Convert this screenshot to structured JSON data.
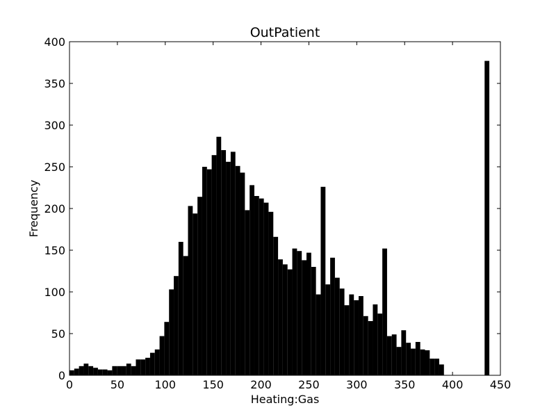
{
  "chart_data": {
    "type": "bar",
    "title": "OutPatient",
    "xlabel": "Heating:Gas",
    "ylabel": "Frequency",
    "xlim": [
      0,
      450
    ],
    "ylim": [
      0,
      400
    ],
    "xticks": [
      0,
      50,
      100,
      150,
      200,
      250,
      300,
      350,
      400,
      450
    ],
    "yticks": [
      0,
      50,
      100,
      150,
      200,
      250,
      300,
      350,
      400
    ],
    "grid": false,
    "legend": "none",
    "bar_color": "#000000",
    "bin_width": 4.95,
    "bins": [
      {
        "x": 0.0,
        "y": 6
      },
      {
        "x": 4.95,
        "y": 8
      },
      {
        "x": 9.9,
        "y": 11
      },
      {
        "x": 14.85,
        "y": 14
      },
      {
        "x": 19.8,
        "y": 11
      },
      {
        "x": 24.75,
        "y": 9
      },
      {
        "x": 29.7,
        "y": 7
      },
      {
        "x": 34.65,
        "y": 7
      },
      {
        "x": 39.6,
        "y": 6
      },
      {
        "x": 44.55,
        "y": 11
      },
      {
        "x": 49.5,
        "y": 11
      },
      {
        "x": 54.45,
        "y": 11
      },
      {
        "x": 59.4,
        "y": 14
      },
      {
        "x": 64.35,
        "y": 11
      },
      {
        "x": 69.3,
        "y": 19
      },
      {
        "x": 74.25,
        "y": 19
      },
      {
        "x": 79.2,
        "y": 21
      },
      {
        "x": 84.15,
        "y": 27
      },
      {
        "x": 89.1,
        "y": 31
      },
      {
        "x": 94.05,
        "y": 47
      },
      {
        "x": 99.0,
        "y": 64
      },
      {
        "x": 103.95,
        "y": 103
      },
      {
        "x": 108.9,
        "y": 119
      },
      {
        "x": 113.85,
        "y": 160
      },
      {
        "x": 118.8,
        "y": 143
      },
      {
        "x": 123.75,
        "y": 203
      },
      {
        "x": 128.7,
        "y": 194
      },
      {
        "x": 133.65,
        "y": 214
      },
      {
        "x": 138.6,
        "y": 250
      },
      {
        "x": 143.55,
        "y": 247
      },
      {
        "x": 148.5,
        "y": 264
      },
      {
        "x": 153.45,
        "y": 286
      },
      {
        "x": 158.4,
        "y": 270
      },
      {
        "x": 163.35,
        "y": 256
      },
      {
        "x": 168.3,
        "y": 268
      },
      {
        "x": 173.25,
        "y": 251
      },
      {
        "x": 178.2,
        "y": 243
      },
      {
        "x": 183.15,
        "y": 198
      },
      {
        "x": 188.1,
        "y": 228
      },
      {
        "x": 193.05,
        "y": 215
      },
      {
        "x": 198.0,
        "y": 212
      },
      {
        "x": 202.95,
        "y": 207
      },
      {
        "x": 207.9,
        "y": 196
      },
      {
        "x": 212.85,
        "y": 166
      },
      {
        "x": 217.8,
        "y": 139
      },
      {
        "x": 222.75,
        "y": 133
      },
      {
        "x": 227.7,
        "y": 127
      },
      {
        "x": 232.65,
        "y": 152
      },
      {
        "x": 237.6,
        "y": 149
      },
      {
        "x": 242.55,
        "y": 138
      },
      {
        "x": 247.5,
        "y": 147
      },
      {
        "x": 252.45,
        "y": 130
      },
      {
        "x": 257.4,
        "y": 97
      },
      {
        "x": 262.35,
        "y": 226
      },
      {
        "x": 267.3,
        "y": 109
      },
      {
        "x": 272.25,
        "y": 141
      },
      {
        "x": 277.2,
        "y": 117
      },
      {
        "x": 282.15,
        "y": 104
      },
      {
        "x": 287.1,
        "y": 84
      },
      {
        "x": 292.05,
        "y": 97
      },
      {
        "x": 297.0,
        "y": 90
      },
      {
        "x": 301.95,
        "y": 95
      },
      {
        "x": 306.9,
        "y": 71
      },
      {
        "x": 311.85,
        "y": 65
      },
      {
        "x": 316.8,
        "y": 85
      },
      {
        "x": 321.75,
        "y": 74
      },
      {
        "x": 326.7,
        "y": 152
      },
      {
        "x": 331.65,
        "y": 47
      },
      {
        "x": 336.6,
        "y": 49
      },
      {
        "x": 341.55,
        "y": 34
      },
      {
        "x": 346.5,
        "y": 54
      },
      {
        "x": 351.45,
        "y": 39
      },
      {
        "x": 356.4,
        "y": 32
      },
      {
        "x": 361.35,
        "y": 40
      },
      {
        "x": 366.3,
        "y": 31
      },
      {
        "x": 371.25,
        "y": 30
      },
      {
        "x": 376.2,
        "y": 20
      },
      {
        "x": 381.15,
        "y": 20
      },
      {
        "x": 386.1,
        "y": 13
      },
      {
        "x": 391.05,
        "y": 0
      },
      {
        "x": 396.0,
        "y": 0
      },
      {
        "x": 400.95,
        "y": 0
      },
      {
        "x": 405.9,
        "y": 0
      },
      {
        "x": 410.85,
        "y": 0
      },
      {
        "x": 415.8,
        "y": 0
      },
      {
        "x": 420.75,
        "y": 0
      },
      {
        "x": 425.7,
        "y": 0
      },
      {
        "x": 430.65,
        "y": 0
      },
      {
        "x": 433.5,
        "y": 377
      }
    ]
  }
}
